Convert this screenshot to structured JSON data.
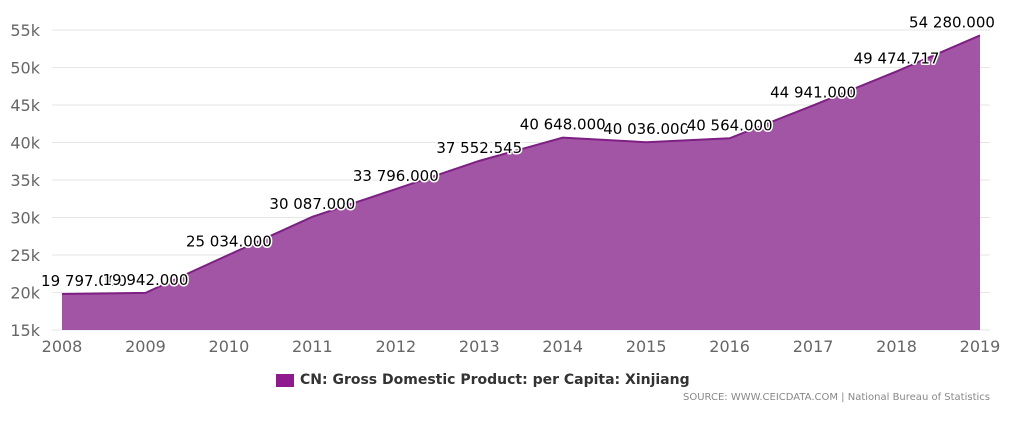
{
  "chart_data": {
    "type": "area",
    "x": [
      "2008",
      "2009",
      "2010",
      "2011",
      "2012",
      "2013",
      "2014",
      "2015",
      "2016",
      "2017",
      "2018",
      "2019"
    ],
    "series": [
      {
        "name": "CN: Gross Domestic Product: per Capita: Xinjiang",
        "values": [
          19797,
          19942,
          25034,
          30087,
          33796,
          37552.545,
          40648,
          40036,
          40564,
          44941,
          49474.717,
          54280
        ],
        "labels": [
          "19 797.000",
          "19 942.000",
          "25 034.000",
          "30 087.000",
          "33 796.000",
          "37 552.545",
          "40 648.000",
          "40 036.000",
          "40 564.000",
          "44 941.000",
          "49 474.717",
          "54 280.000"
        ]
      }
    ],
    "yticks": [
      15000,
      20000,
      25000,
      30000,
      35000,
      40000,
      45000,
      50000,
      55000
    ],
    "ytick_labels": [
      "15k",
      "20k",
      "25k",
      "30k",
      "35k",
      "40k",
      "45k",
      "50k",
      "55k"
    ],
    "ylim": [
      15000,
      55000
    ],
    "grid": true,
    "legend_position": "bottom",
    "colors": {
      "fill": "#a355a5",
      "line": "#7e1f84",
      "legend": "#8e1a8e"
    }
  },
  "source_text": "SOURCE: WWW.CEICDATA.COM | National Bureau of Statistics"
}
